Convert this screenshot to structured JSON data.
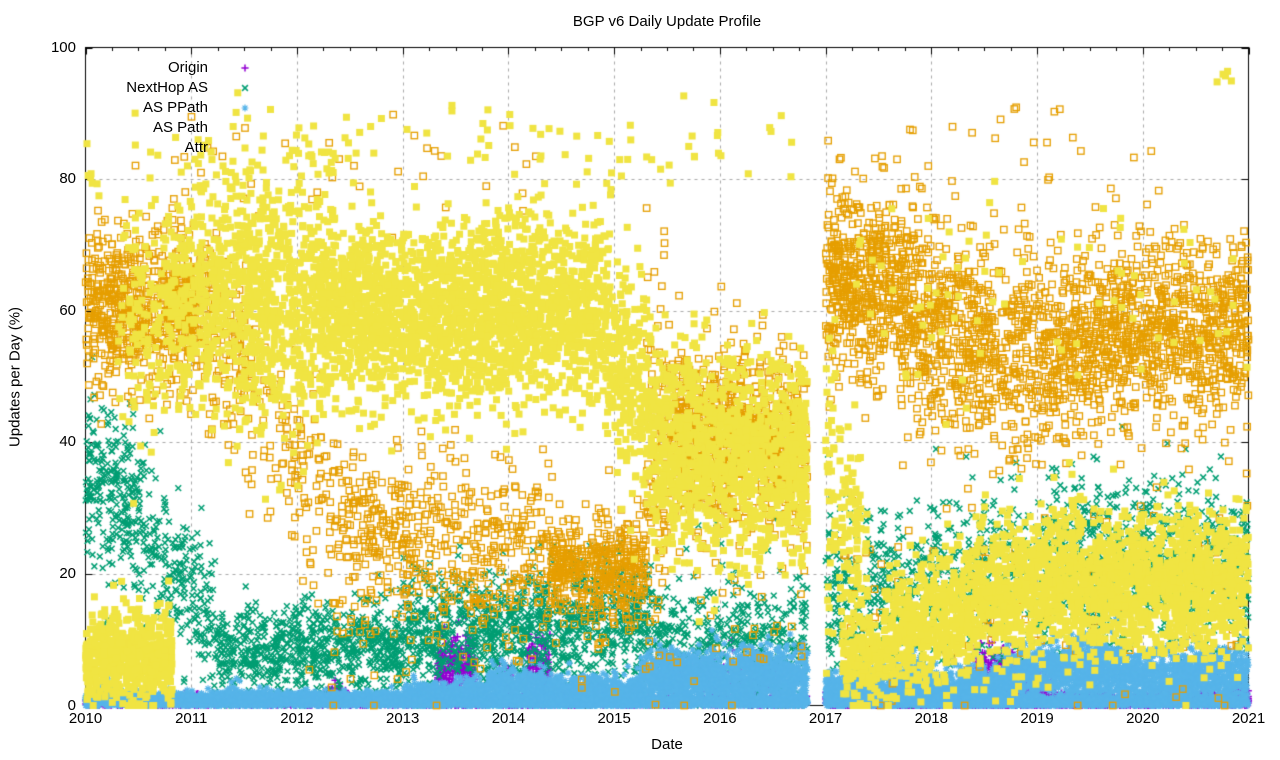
{
  "chart_data": {
    "type": "scatter",
    "title": "BGP v6 Daily Update Profile",
    "xlabel": "Date",
    "ylabel": "Updates per Day (%)",
    "xlim": [
      2010,
      2021
    ],
    "ylim": [
      0,
      100
    ],
    "xticks": [
      2010,
      2011,
      2012,
      2013,
      2014,
      2015,
      2016,
      2017,
      2018,
      2019,
      2020,
      2021
    ],
    "yticks": [
      0,
      20,
      40,
      60,
      80,
      100
    ],
    "grid": true,
    "legend_position": "top-left-inside",
    "background": "#ffffff",
    "axis_color": "#000000",
    "grid_color": "#a9a9a9",
    "data_gap_x": [
      2016.83,
      2017.0
    ],
    "band_format": [
      "x_start_year",
      "x_end_year",
      "y_center_start_pct",
      "y_center_end_pct",
      "y_stddev_pct",
      "points_per_year"
    ],
    "series": [
      {
        "name": "Origin",
        "color": "#9400d3",
        "marker": "plus",
        "bands": [
          [
            2010.0,
            2016.83,
            0.5,
            0.6,
            0.45,
            260
          ],
          [
            2010.1,
            2010.22,
            1.5,
            1.5,
            0.7,
            160
          ],
          [
            2012.28,
            2012.5,
            1.8,
            1.8,
            0.8,
            130
          ],
          [
            2013.33,
            2013.68,
            5.5,
            6.0,
            2.6,
            650
          ],
          [
            2013.9,
            2014.05,
            3.5,
            3.5,
            1.5,
            350
          ],
          [
            2014.18,
            2014.4,
            6.0,
            5.0,
            2.2,
            550
          ],
          [
            2015.6,
            2016.55,
            4.0,
            3.2,
            1.7,
            120
          ],
          [
            2017.0,
            2021.0,
            0.6,
            0.7,
            0.5,
            700
          ],
          [
            2018.4,
            2018.85,
            5.0,
            4.5,
            2.4,
            520
          ],
          [
            2018.85,
            2019.15,
            2.8,
            2.5,
            1.3,
            350
          ],
          [
            2020.85,
            2021.0,
            2.2,
            2.0,
            1.2,
            260
          ]
        ]
      },
      {
        "name": "NextHop AS",
        "color": "#009e73",
        "marker": "cross",
        "bands": [
          [
            2010.0,
            2010.5,
            34,
            31,
            6.5,
            480
          ],
          [
            2010.5,
            2011.25,
            28,
            11,
            6,
            330
          ],
          [
            2011.25,
            2013.0,
            8,
            9,
            3.5,
            420
          ],
          [
            2013.0,
            2014.6,
            11,
            12,
            4.5,
            480
          ],
          [
            2014.6,
            2015.35,
            13,
            12,
            5,
            480
          ],
          [
            2015.35,
            2016.83,
            10,
            9,
            4.5,
            300
          ],
          [
            2015.7,
            2016.6,
            29,
            27,
            8,
            30
          ],
          [
            2017.0,
            2018.2,
            16,
            18,
            7,
            330
          ],
          [
            2018.2,
            2019.1,
            19,
            21,
            7,
            330
          ],
          [
            2019.1,
            2021.0,
            22,
            21,
            6.5,
            430
          ]
        ]
      },
      {
        "name": "AS PPath",
        "color": "#56b4e9",
        "marker": "asterisk",
        "bands": [
          [
            2010.0,
            2013.0,
            0.8,
            0.9,
            0.6,
            650
          ],
          [
            2010.13,
            2010.28,
            2.3,
            2.3,
            1.0,
            160
          ],
          [
            2011.33,
            2011.48,
            2.0,
            2.0,
            0.9,
            120
          ],
          [
            2013.0,
            2013.8,
            1.5,
            1.8,
            1.1,
            650
          ],
          [
            2013.8,
            2014.35,
            2.8,
            2.4,
            1.8,
            700
          ],
          [
            2014.35,
            2015.25,
            1.8,
            1.9,
            1.3,
            700
          ],
          [
            2015.25,
            2016.83,
            4.0,
            4.4,
            2.0,
            800
          ],
          [
            2015.45,
            2015.6,
            6.5,
            6.5,
            1.5,
            130
          ],
          [
            2016.2,
            2016.5,
            6.3,
            6.3,
            1.8,
            200
          ],
          [
            2017.0,
            2018.7,
            2.2,
            2.8,
            1.6,
            800
          ],
          [
            2017.75,
            2017.95,
            4.5,
            4.5,
            1.5,
            220
          ],
          [
            2018.7,
            2019.8,
            4.5,
            5.0,
            2.4,
            800
          ],
          [
            2019.3,
            2019.6,
            7.0,
            7.0,
            2.2,
            260
          ],
          [
            2019.8,
            2021.0,
            4.0,
            4.4,
            2.2,
            800
          ],
          [
            2013.0,
            2021.0,
            0.55,
            0.6,
            0.45,
            420
          ]
        ]
      },
      {
        "name": "AS Path",
        "color": "#e69f00",
        "marker": "open-square",
        "bands": [
          [
            2010.0,
            2011.05,
            61,
            61,
            6,
            600
          ],
          [
            2011.05,
            2011.6,
            62,
            50,
            7,
            260
          ],
          [
            2011.6,
            2012.3,
            46,
            30,
            8,
            150
          ],
          [
            2012.3,
            2013.1,
            27,
            25,
            6,
            260
          ],
          [
            2013.1,
            2014.4,
            25,
            24,
            7,
            220
          ],
          [
            2014.4,
            2015.3,
            21,
            21,
            4,
            460
          ],
          [
            2015.3,
            2015.55,
            28,
            42,
            10,
            320
          ],
          [
            2015.3,
            2015.5,
            58,
            62,
            8,
            100
          ],
          [
            2015.55,
            2016.83,
            41,
            40,
            6.5,
            600
          ],
          [
            2017.0,
            2017.85,
            65,
            62,
            7.5,
            700
          ],
          [
            2017.85,
            2018.6,
            58,
            55,
            7.5,
            560
          ],
          [
            2018.6,
            2019.3,
            52,
            54,
            7.5,
            460
          ],
          [
            2019.3,
            2021.0,
            56,
            57,
            7,
            560
          ],
          [
            2012.0,
            2016.8,
            12,
            12,
            6,
            22
          ],
          [
            2017.1,
            2021.0,
            17,
            16,
            9,
            28
          ],
          [
            2011.0,
            2014.3,
            82,
            83,
            5,
            9
          ],
          [
            2017.2,
            2020.1,
            83,
            83,
            5,
            11
          ]
        ]
      },
      {
        "name": "Attr",
        "color": "#f0e442",
        "marker": "filled-square",
        "bands": [
          [
            2010.0,
            2010.15,
            82,
            82,
            3,
            45
          ],
          [
            2010.0,
            2010.82,
            7.0,
            7.5,
            3.4,
            750
          ],
          [
            2010.3,
            2010.75,
            57,
            59,
            9,
            260
          ],
          [
            2010.75,
            2011.3,
            61,
            62,
            8,
            560
          ],
          [
            2011.3,
            2012.2,
            63,
            62,
            10,
            720
          ],
          [
            2012.2,
            2014.9,
            60,
            60,
            7,
            820
          ],
          [
            2014.9,
            2015.35,
            56,
            45,
            8,
            620
          ],
          [
            2015.35,
            2016.83,
            39,
            37,
            7.5,
            820
          ],
          [
            2017.0,
            2017.4,
            38,
            15,
            12,
            420
          ],
          [
            2017.15,
            2017.55,
            7,
            7,
            3,
            350
          ],
          [
            2017.55,
            2018.4,
            10,
            15,
            5,
            620
          ],
          [
            2018.4,
            2019.2,
            17,
            19,
            5.5,
            660
          ],
          [
            2019.2,
            2021.0,
            19,
            18,
            5.5,
            720
          ],
          [
            2010.4,
            2016.8,
            85,
            84,
            4,
            16
          ],
          [
            2017.2,
            2021.0,
            63,
            62,
            8,
            20
          ],
          [
            2020.5,
            2020.88,
            95,
            95,
            1.8,
            12
          ]
        ]
      }
    ]
  }
}
